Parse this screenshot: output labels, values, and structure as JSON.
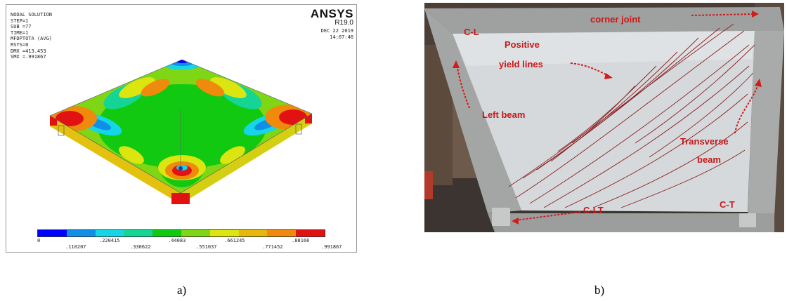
{
  "panel_a": {
    "info_lines": [
      "NODAL SOLUTION",
      "STEP=1",
      "SUB =77",
      "TIME=1",
      "MFDPTOTA (AVG)",
      "RSYS=0",
      "DMX =413.453",
      "SMX =.991867"
    ],
    "brand": "ANSYS",
    "version": "R19.0",
    "date": "DEC 22 2019",
    "time": "14:07:46",
    "legend": {
      "colors": [
        "#0000ff",
        "#0f8fe6",
        "#15d6e6",
        "#15d596",
        "#12c912",
        "#7fd614",
        "#dce50f",
        "#e6b80c",
        "#f08a0c",
        "#e21212"
      ],
      "ticks_top": [
        "0",
        ".220415",
        ".44083",
        ".661245",
        ".88166"
      ],
      "ticks_bottom": [
        ".110207",
        ".330622",
        ".551037",
        ".771452",
        ".991867"
      ]
    }
  },
  "panel_b": {
    "labels": {
      "corner_joint": "corner joint",
      "cl": "C-L",
      "positive": "Positive",
      "yield_lines": "yield lines",
      "left_beam": "Left beam",
      "transverse": "Transverse",
      "beam": "beam",
      "clt": "C-LT",
      "ct": "C-T"
    }
  },
  "captions": {
    "a": "a)",
    "b": "b)"
  }
}
